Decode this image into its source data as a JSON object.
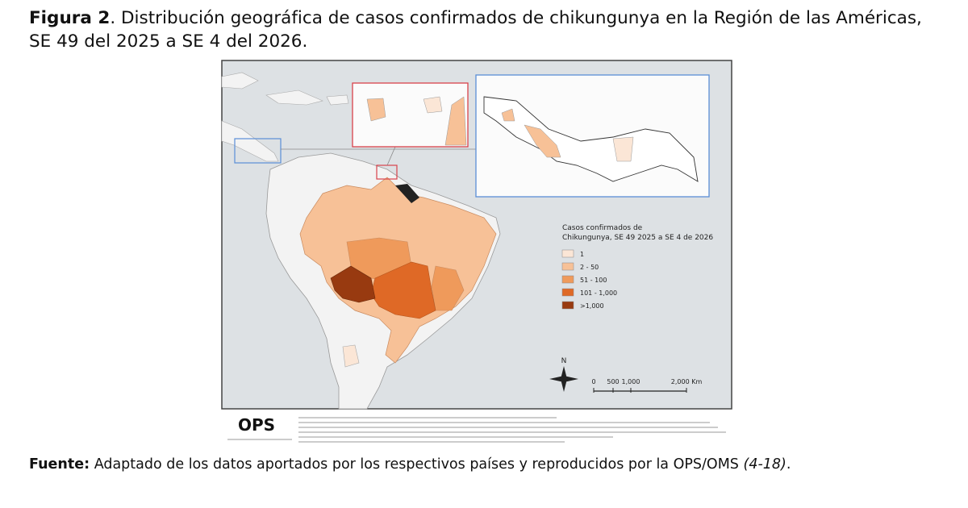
{
  "figure": {
    "label": "Figura 2",
    "caption": ". Distribución geográfica de casos confirmados de chikungunya en la Región de las Américas, SE 49 del 2025 a SE 4 del 2026.",
    "map": {
      "legend": {
        "title_lines": [
          "Casos confirmados de",
          "Chikungunya, SE 49 2025 a SE 4 de 2026"
        ],
        "items": [
          {
            "label": "1",
            "color": "#fbe6d6"
          },
          {
            "label": "2 - 50",
            "color": "#f7c197"
          },
          {
            "label": "51 - 100",
            "color": "#ef9a5b"
          },
          {
            "label": "101 - 1,000",
            "color": "#df6926"
          },
          {
            "label": ">1,000",
            "color": "#983a10"
          }
        ]
      },
      "north": "N",
      "scale_labels": [
        "0",
        "500",
        "1,000",
        "2,000 Km"
      ],
      "logo": "OPS"
    },
    "source": {
      "label": "Fuente:",
      "text": "Adaptado de los datos aportados por los respectivos países y reproducidos por la OPS/OMS",
      "reference": "(4-18)",
      "end": "."
    }
  }
}
